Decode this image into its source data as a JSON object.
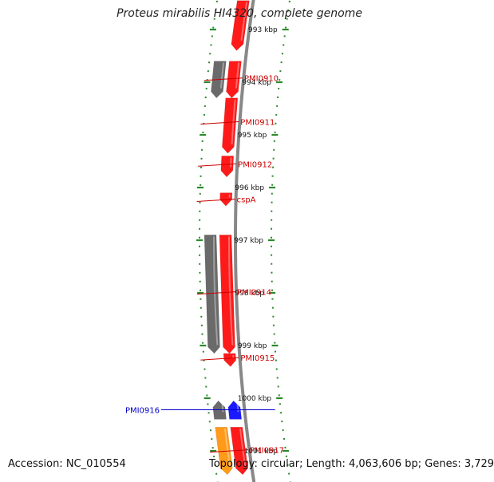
{
  "title": "Proteus mirabilis HI4320, complete genome",
  "footer": {
    "accession": "Accession: NC_010554",
    "topology": "Topology: circular; Length: 4,063,606 bp; Genes: 3,729"
  },
  "colors": {
    "backbone": "#888888",
    "tick": "#2a8a2a",
    "red_gene": "#ff1a1a",
    "gray_gene": "#6a6a6a",
    "blue_gene": "#1a1aff",
    "orange_gene": "#ff9a1a",
    "red_label": "#cc0000",
    "blue_label": "#0000cc"
  },
  "axis": {
    "ticks": [
      "993 kbp",
      "994 kbp",
      "995 kbp",
      "996 kbp",
      "997 kbp",
      "998 kbp",
      "999 kbp",
      "1000 kbp",
      "1001 kbp"
    ]
  },
  "gene_labels": [
    {
      "name": "PMI0910",
      "kbp": 993.92,
      "strand": "forward"
    },
    {
      "name": "PMI0911",
      "kbp": 994.75,
      "strand": "forward"
    },
    {
      "name": "PMI0912",
      "kbp": 995.55,
      "strand": "forward"
    },
    {
      "name": "cspA",
      "kbp": 996.22,
      "strand": "forward"
    },
    {
      "name": "PMI0914",
      "kbp": 997.98,
      "strand": "forward"
    },
    {
      "name": "PMI0915",
      "kbp": 999.23,
      "strand": "forward"
    },
    {
      "name": "PMI0916",
      "kbp": 1000.22,
      "strand": "reverse"
    },
    {
      "name": "PMI0917",
      "kbp": 1000.98,
      "strand": "forward"
    }
  ],
  "features": [
    {
      "type": "CDS",
      "strand": "forward",
      "track": "inner",
      "start_kbp": 992.45,
      "end_kbp": 993.4,
      "color": "red"
    },
    {
      "type": "CDS",
      "strand": "forward",
      "track": "inner",
      "start_kbp": 993.6,
      "end_kbp": 994.3,
      "color": "red"
    },
    {
      "type": "gene",
      "strand": "forward",
      "track": "outer",
      "start_kbp": 993.6,
      "end_kbp": 994.3,
      "color": "gray"
    },
    {
      "type": "CDS",
      "strand": "forward",
      "track": "inner",
      "start_kbp": 994.3,
      "end_kbp": 995.35,
      "color": "red"
    },
    {
      "type": "CDS",
      "strand": "forward",
      "track": "inner",
      "start_kbp": 995.4,
      "end_kbp": 995.8,
      "color": "red"
    },
    {
      "type": "CDS",
      "strand": "forward",
      "track": "inner",
      "start_kbp": 996.1,
      "end_kbp": 996.35,
      "color": "red"
    },
    {
      "type": "CDS",
      "strand": "forward",
      "track": "inner",
      "start_kbp": 996.9,
      "end_kbp": 999.15,
      "color": "red"
    },
    {
      "type": "gene",
      "strand": "forward",
      "track": "outer",
      "start_kbp": 996.9,
      "end_kbp": 999.15,
      "color": "gray"
    },
    {
      "type": "CDS",
      "strand": "forward",
      "track": "inner",
      "start_kbp": 999.15,
      "end_kbp": 999.4,
      "color": "red"
    },
    {
      "type": "gene",
      "strand": "reverse",
      "track": "outer",
      "start_kbp": 1000.05,
      "end_kbp": 1000.4,
      "color": "gray"
    },
    {
      "type": "CDS",
      "strand": "reverse",
      "track": "inner",
      "start_kbp": 1000.05,
      "end_kbp": 1000.4,
      "color": "blue"
    },
    {
      "type": "CDS",
      "strand": "forward",
      "track": "inner",
      "start_kbp": 1000.55,
      "end_kbp": 1001.45,
      "color": "red"
    },
    {
      "type": "gene",
      "strand": "forward",
      "track": "outer",
      "start_kbp": 1000.55,
      "end_kbp": 1001.45,
      "color": "orange"
    }
  ]
}
